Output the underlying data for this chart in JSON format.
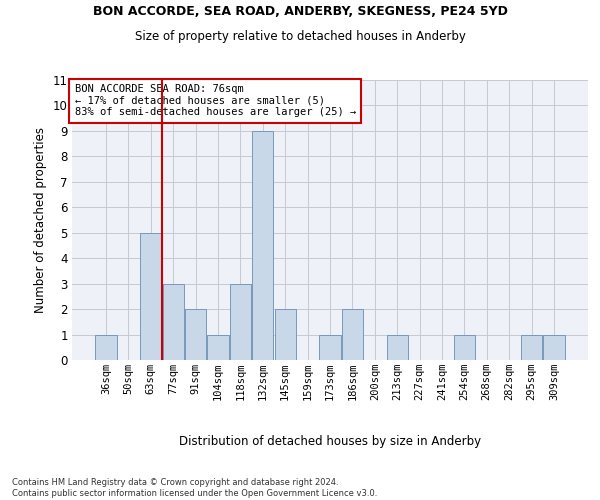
{
  "title1": "BON ACCORDE, SEA ROAD, ANDERBY, SKEGNESS, PE24 5YD",
  "title2": "Size of property relative to detached houses in Anderby",
  "xlabel": "Distribution of detached houses by size in Anderby",
  "ylabel": "Number of detached properties",
  "categories": [
    "36sqm",
    "50sqm",
    "63sqm",
    "77sqm",
    "91sqm",
    "104sqm",
    "118sqm",
    "132sqm",
    "145sqm",
    "159sqm",
    "173sqm",
    "186sqm",
    "200sqm",
    "213sqm",
    "227sqm",
    "241sqm",
    "254sqm",
    "268sqm",
    "282sqm",
    "295sqm",
    "309sqm"
  ],
  "values": [
    1,
    0,
    5,
    3,
    2,
    1,
    3,
    9,
    2,
    0,
    1,
    2,
    0,
    1,
    0,
    0,
    1,
    0,
    0,
    1,
    1
  ],
  "bar_color": "#c8d8e8",
  "bar_edge_color": "#7799bb",
  "vline_index": 2,
  "vline_color": "#cc0000",
  "ylim": [
    0,
    11
  ],
  "yticks": [
    0,
    1,
    2,
    3,
    4,
    5,
    6,
    7,
    8,
    9,
    10,
    11
  ],
  "annotation_text": "BON ACCORDE SEA ROAD: 76sqm\n← 17% of detached houses are smaller (5)\n83% of semi-detached houses are larger (25) →",
  "annotation_box_color": "#cc0000",
  "footnote": "Contains HM Land Registry data © Crown copyright and database right 2024.\nContains public sector information licensed under the Open Government Licence v3.0.",
  "grid_color": "#c8c8d0",
  "background_color": "#eef2f8"
}
